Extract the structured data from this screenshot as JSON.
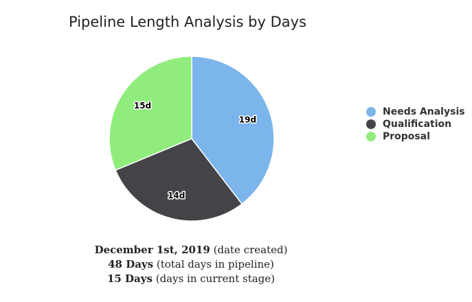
{
  "chart_data": {
    "type": "pie",
    "title": "Pipeline Length Analysis by Days",
    "categories": [
      "Needs Analysis",
      "Qualification",
      "Proposal"
    ],
    "values": [
      19,
      14,
      15
    ],
    "data_labels": [
      "19d",
      "14d",
      "15d"
    ],
    "colors": [
      "#7cb5ec",
      "#434348",
      "#90ed7d"
    ],
    "start_angle_deg": 0,
    "direction": "clockwise",
    "legend": "right"
  },
  "info": [
    {
      "value": "December 1st, 2019",
      "note": "(date created)"
    },
    {
      "value": "48 Days",
      "note": "(total days in pipeline)"
    },
    {
      "value": "15 Days",
      "note": "(days in current stage)"
    }
  ]
}
